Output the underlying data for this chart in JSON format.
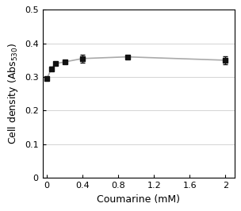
{
  "x": [
    0,
    0.05,
    0.1,
    0.2,
    0.4,
    0.9,
    2.0
  ],
  "y": [
    0.295,
    0.325,
    0.34,
    0.345,
    0.355,
    0.36,
    0.35
  ],
  "yerr": [
    0.005,
    0.005,
    0.005,
    0.005,
    0.012,
    0.005,
    0.012
  ],
  "line_color": "#aaaaaa",
  "marker_color": "#111111",
  "xlabel": "Coumarine (mM)",
  "ylabel_main": "Cell density (Abs",
  "ylabel_sub": "530",
  "ylabel_end": ")",
  "xlim": [
    -0.05,
    2.1
  ],
  "ylim": [
    0,
    0.5
  ],
  "xticks": [
    0,
    0.4,
    0.8,
    1.2,
    1.6,
    2.0
  ],
  "xticklabels": [
    "0",
    "0.4",
    "0.8",
    "1.2",
    "1.6",
    "2"
  ],
  "yticks": [
    0,
    0.1,
    0.2,
    0.3,
    0.4,
    0.5
  ],
  "yticklabels": [
    "0",
    "0.1",
    "0.2",
    "0.3",
    "0.4",
    "0.5"
  ],
  "axis_fontsize": 9,
  "tick_fontsize": 8,
  "background_color": "#ffffff",
  "grid_color": "#cccccc"
}
